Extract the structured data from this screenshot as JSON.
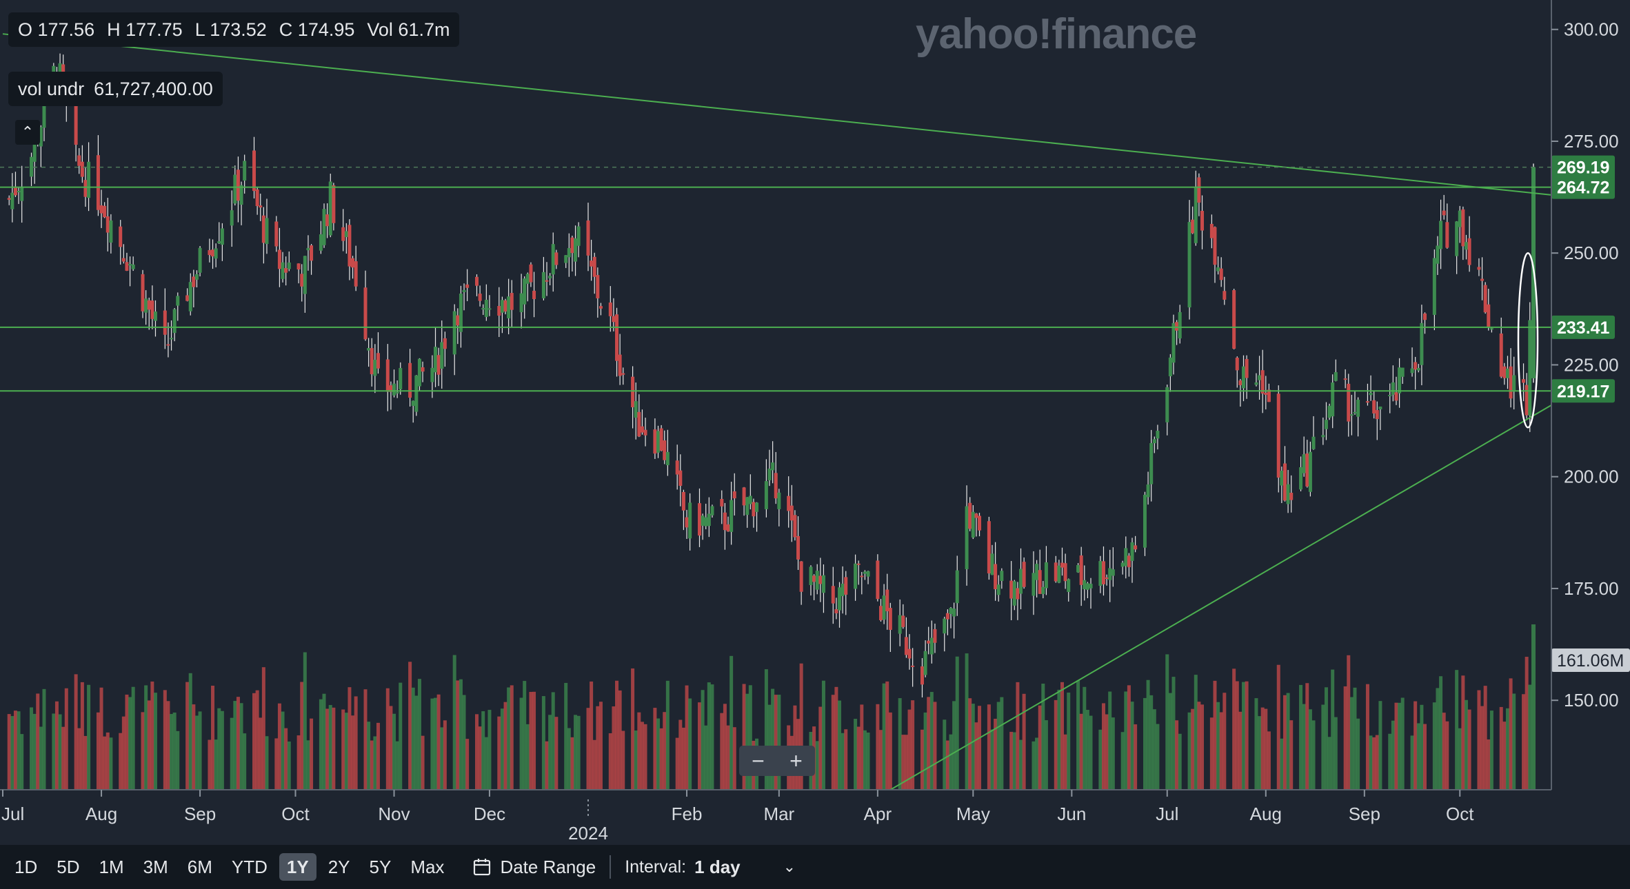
{
  "header": {
    "ohlc": [
      "O 177.56",
      "H 177.75",
      "L 173.52",
      "C 174.95",
      "Vol 61.7m"
    ],
    "vol_label": "vol undr",
    "vol_value": "61,727,400.00",
    "logo": "yahoo!finance"
  },
  "zoom": {
    "minus": "−",
    "plus": "+"
  },
  "toolbar": {
    "ranges": [
      "1D",
      "5D",
      "1M",
      "3M",
      "6M",
      "YTD",
      "1Y",
      "2Y",
      "5Y",
      "Max"
    ],
    "active_range": "1Y",
    "date_range_label": "Date Range",
    "interval_label": "Interval:",
    "interval_value": "1 day"
  },
  "colors": {
    "background": "#1e2530",
    "up": "#3d8c4f",
    "down": "#c94a4a",
    "trendline": "#4caf50",
    "label_bg": "#2e7d42",
    "grid": "#2b333e"
  },
  "chart_data": {
    "type": "candlestick",
    "x_axis_labels": [
      "Jul",
      "Aug",
      "Sep",
      "Oct",
      "Nov",
      "Dec",
      "2024",
      "Feb",
      "Mar",
      "Apr",
      "May",
      "Jun",
      "Jul",
      "Aug",
      "Sep",
      "Oct"
    ],
    "y_ticks": [
      150,
      175,
      200,
      225,
      250,
      275,
      300
    ],
    "y_tick_labels": [
      "150.00",
      "175.00",
      "200.00",
      "225.00",
      "250.00",
      "275.00",
      "300.00"
    ],
    "ylim": [
      130,
      305
    ],
    "horizontal_lines": [
      {
        "value": 264.72,
        "label": "264.72"
      },
      {
        "value": 233.41,
        "label": "233.41"
      },
      {
        "value": 219.17,
        "label": "219.17"
      }
    ],
    "current_price": {
      "value": 269.19,
      "label": "269.19"
    },
    "volume_marker": {
      "label": "161.06M"
    },
    "trendlines": [
      {
        "from": [
          "2023-07-01",
          299
        ],
        "to": [
          "2024-10-25",
          263
        ]
      },
      {
        "from": [
          "2024-04-05",
          130
        ],
        "to": [
          "2024-10-25",
          216
        ]
      }
    ],
    "annotation": "white ellipse around final breakout candle",
    "close_path": [
      [
        "2023-07-03",
        262
      ],
      [
        "2023-07-10",
        272
      ],
      [
        "2023-07-18",
        292
      ],
      [
        "2023-07-24",
        270
      ],
      [
        "2023-08-01",
        262
      ],
      [
        "2023-08-10",
        248
      ],
      [
        "2023-08-21",
        228
      ],
      [
        "2023-08-28",
        242
      ],
      [
        "2023-09-07",
        256
      ],
      [
        "2023-09-15",
        268
      ],
      [
        "2023-09-25",
        248
      ],
      [
        "2023-10-04",
        246
      ],
      [
        "2023-10-12",
        262
      ],
      [
        "2023-10-20",
        245
      ],
      [
        "2023-10-27",
        220
      ],
      [
        "2023-11-06",
        220
      ],
      [
        "2023-11-14",
        225
      ],
      [
        "2023-11-20",
        238
      ],
      [
        "2023-11-30",
        241
      ],
      [
        "2023-12-10",
        238
      ],
      [
        "2023-12-18",
        246
      ],
      [
        "2023-12-28",
        254
      ],
      [
        "2024-01-08",
        234
      ],
      [
        "2024-01-16",
        213
      ],
      [
        "2024-01-24",
        208
      ],
      [
        "2024-02-01",
        190
      ],
      [
        "2024-02-12",
        190
      ],
      [
        "2024-02-22",
        195
      ],
      [
        "2024-03-01",
        200
      ],
      [
        "2024-03-08",
        178
      ],
      [
        "2024-03-18",
        172
      ],
      [
        "2024-03-27",
        178
      ],
      [
        "2024-04-05",
        168
      ],
      [
        "2024-04-15",
        158
      ],
      [
        "2024-04-24",
        168
      ],
      [
        "2024-04-29",
        193
      ],
      [
        "2024-05-06",
        180
      ],
      [
        "2024-05-16",
        175
      ],
      [
        "2024-05-24",
        179
      ],
      [
        "2024-06-03",
        177
      ],
      [
        "2024-06-13",
        180
      ],
      [
        "2024-06-21",
        184
      ],
      [
        "2024-07-03",
        231
      ],
      [
        "2024-07-10",
        262
      ],
      [
        "2024-07-17",
        250
      ],
      [
        "2024-07-24",
        222
      ],
      [
        "2024-07-31",
        222
      ],
      [
        "2024-08-07",
        195
      ],
      [
        "2024-08-14",
        202
      ],
      [
        "2024-08-23",
        220
      ],
      [
        "2024-08-30",
        214
      ],
      [
        "2024-09-09",
        216
      ],
      [
        "2024-09-18",
        228
      ],
      [
        "2024-09-25",
        254
      ],
      [
        "2024-10-01",
        258
      ],
      [
        "2024-10-08",
        242
      ],
      [
        "2024-10-15",
        222
      ],
      [
        "2024-10-22",
        218
      ],
      [
        "2024-10-24",
        260
      ]
    ]
  }
}
